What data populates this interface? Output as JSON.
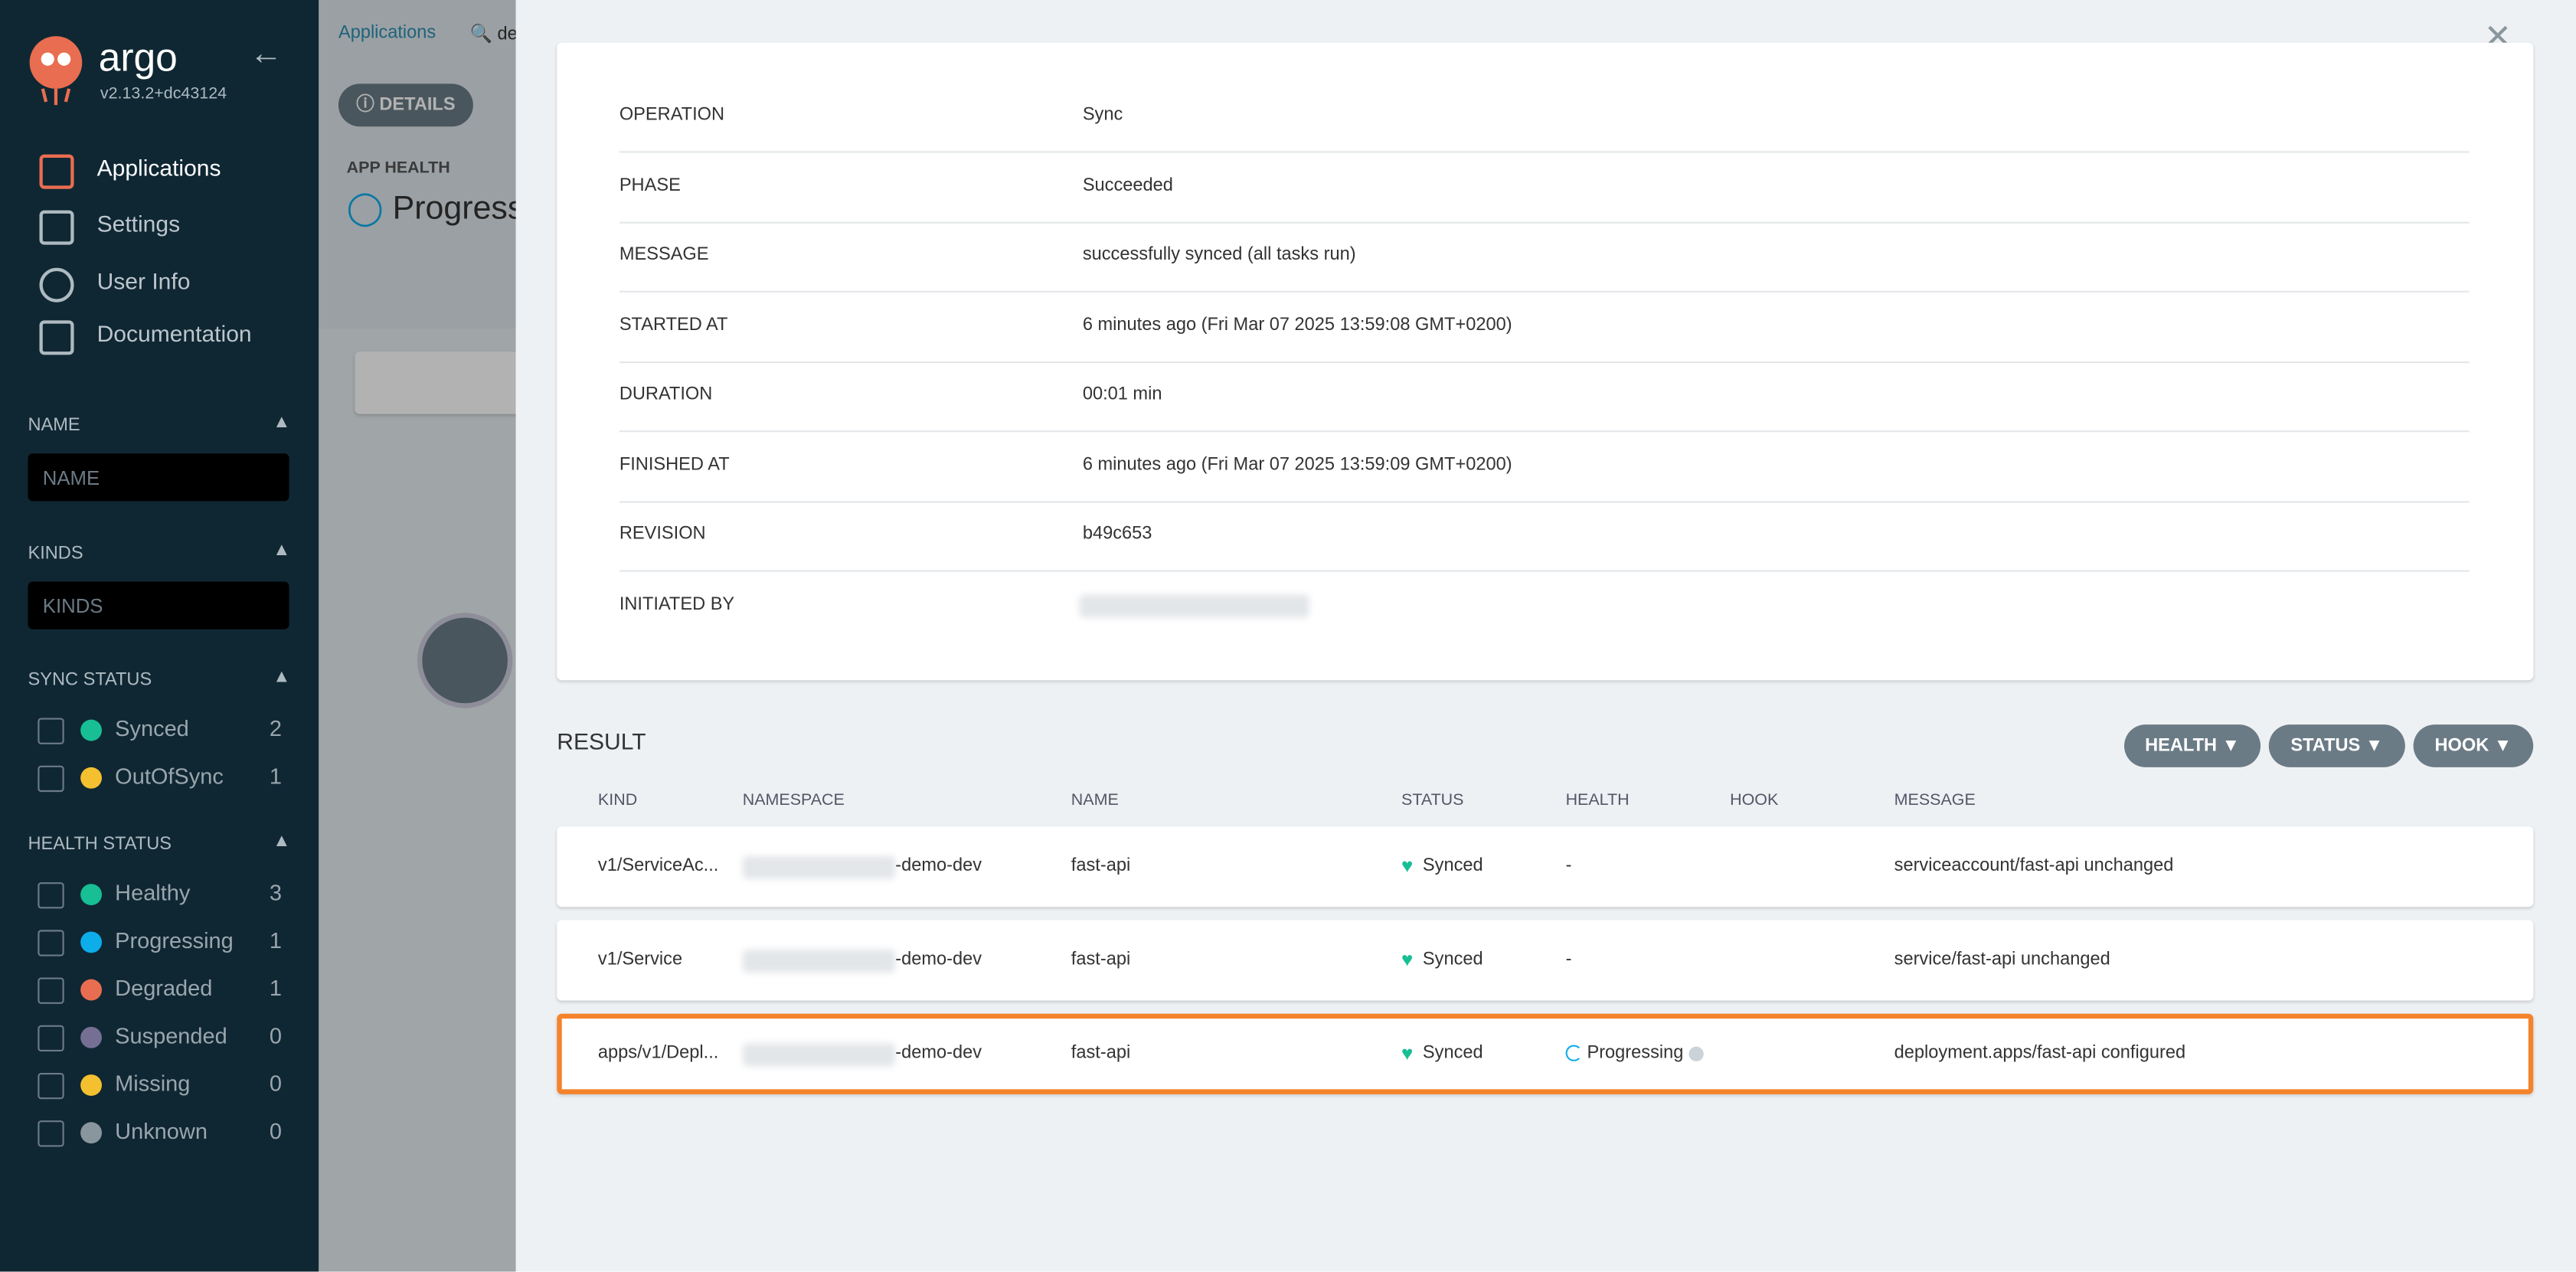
{
  "sidebar": {
    "logo": "argo",
    "version": "v2.13.2+dc43124",
    "nav": [
      "Applications",
      "Settings",
      "User Info",
      "Documentation"
    ],
    "filters": [
      {
        "title": "NAME",
        "placeholder": "NAME"
      },
      {
        "title": "KINDS",
        "placeholder": "KINDS"
      }
    ],
    "sync_status": {
      "title": "SYNC STATUS",
      "items": [
        {
          "label": "Synced",
          "count": "2"
        },
        {
          "label": "OutOfSync",
          "count": "1"
        }
      ]
    },
    "health_status": {
      "title": "HEALTH STATUS",
      "items": [
        {
          "label": "Healthy",
          "count": "3"
        },
        {
          "label": "Progressing",
          "count": "1"
        },
        {
          "label": "Degraded",
          "count": "1"
        },
        {
          "label": "Suspended",
          "count": "0"
        },
        {
          "label": "Missing",
          "count": "0"
        },
        {
          "label": "Unknown",
          "count": "0"
        }
      ]
    }
  },
  "background": {
    "breadcrumb": "Applications",
    "search": "de",
    "details_button": "DETAILS",
    "app_health_label": "APP HEALTH",
    "app_health": "Progressing"
  },
  "operation": {
    "rows": [
      [
        "OPERATION",
        "Sync"
      ],
      [
        "PHASE",
        "Succeeded"
      ],
      [
        "MESSAGE",
        "successfully synced (all tasks run)"
      ],
      [
        "STARTED AT",
        "6 minutes ago (Fri Mar 07 2025 13:59:08 GMT+0200)"
      ],
      [
        "DURATION",
        "00:01 min"
      ],
      [
        "FINISHED AT",
        "6 minutes ago (Fri Mar 07 2025 13:59:09 GMT+0200)"
      ],
      [
        "REVISION",
        "b49c653"
      ],
      [
        "INITIATED BY",
        null
      ]
    ]
  },
  "result": {
    "title": "RESULT",
    "filters": [
      "HEALTH",
      "STATUS",
      "HOOK"
    ],
    "columns": [
      "KIND",
      "NAMESPACE",
      "NAME",
      "STATUS",
      "HEALTH",
      "HOOK",
      "MESSAGE"
    ],
    "rows": [
      [
        "v1/ServiceAc...",
        "-demo-dev",
        "fast-api",
        "Synced",
        "-",
        null,
        "serviceaccount/fast-api unchanged"
      ],
      [
        "v1/Service",
        "-demo-dev",
        "fast-api",
        "Synced",
        "-",
        null,
        "service/fast-api unchanged"
      ],
      [
        "apps/v1/Depl...",
        "-demo-dev",
        "fast-api",
        "Synced",
        "Progressing",
        null,
        "deployment.apps/fast-api configured"
      ]
    ]
  }
}
